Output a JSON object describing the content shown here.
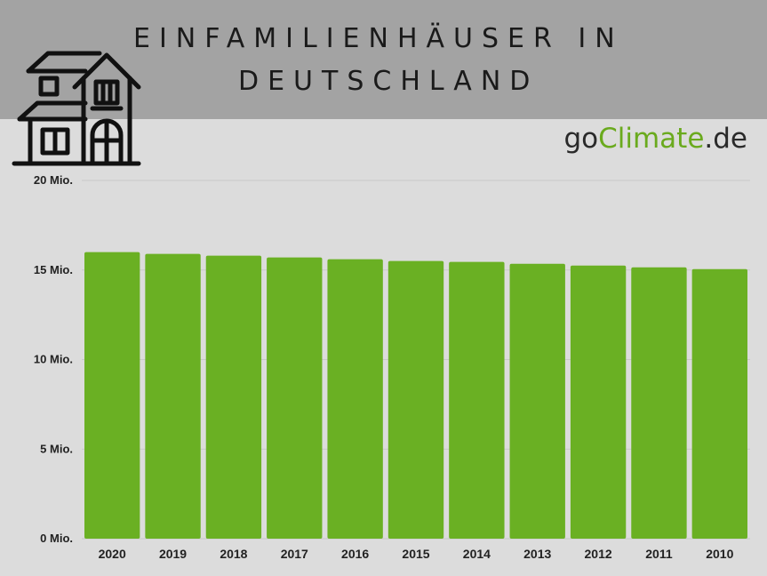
{
  "header": {
    "title_line1": "EINFAMILIENHÄUSER IN",
    "title_line2": "DEUTSCHLAND",
    "icon": "house-icon"
  },
  "logo": {
    "prefix": "go",
    "accent": "Climate",
    "suffix": ".de"
  },
  "colors": {
    "bar": "#6ab023",
    "header_bg": "#a3a3a3",
    "bg": "#dcdcdc",
    "logo_accent": "#6aaa1e"
  },
  "chart_data": {
    "type": "bar",
    "title": "EINFAMILIENHÄUSER IN DEUTSCHLAND",
    "xlabel": "",
    "ylabel": "",
    "categories": [
      "2020",
      "2019",
      "2018",
      "2017",
      "2016",
      "2015",
      "2014",
      "2013",
      "2012",
      "2011",
      "2010"
    ],
    "values": [
      16.0,
      15.9,
      15.8,
      15.7,
      15.6,
      15.5,
      15.45,
      15.35,
      15.25,
      15.15,
      15.05
    ],
    "ylim": [
      0,
      20
    ],
    "yticks": [
      0,
      5,
      10,
      15,
      20
    ],
    "ytick_labels": [
      "0 Mio.",
      "5 Mio.",
      "10 Mio.",
      "15 Mio.",
      "20 Mio."
    ],
    "grid": true,
    "legend": "none"
  }
}
